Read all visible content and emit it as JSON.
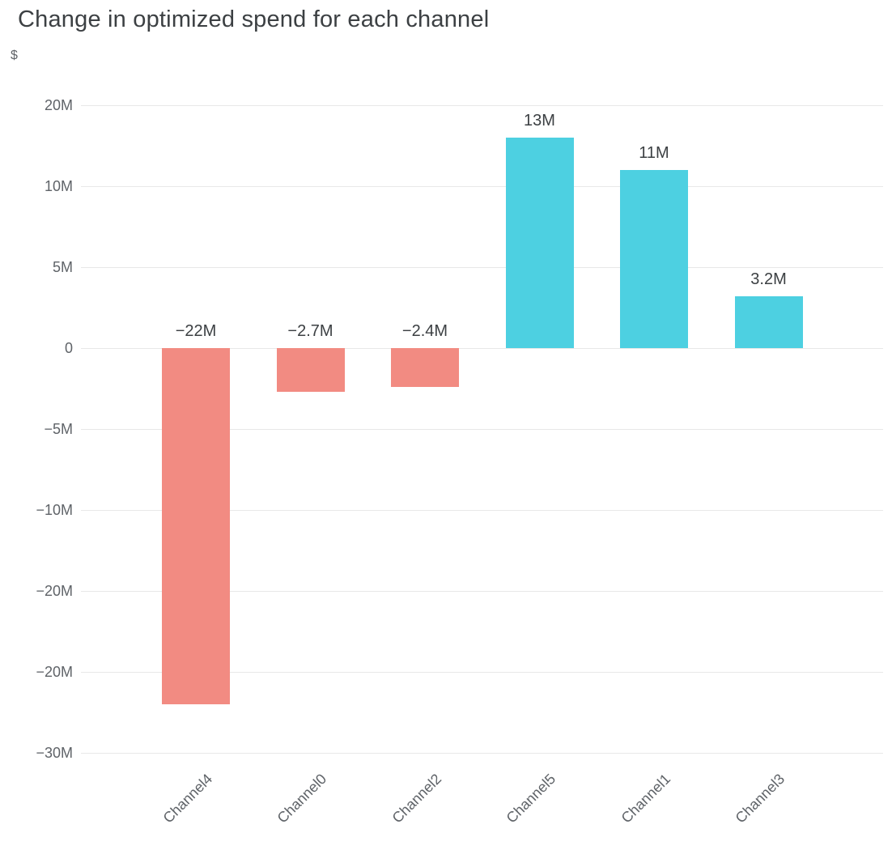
{
  "chart_data": {
    "type": "bar",
    "title": "Change in optimized spend for each channel",
    "ylabel": "$",
    "xlabel": "",
    "categories": [
      "Channel4",
      "Channel0",
      "Channel2",
      "Channel5",
      "Channel1",
      "Channel3"
    ],
    "values": [
      -22000000,
      -2700000,
      -2400000,
      13000000,
      11000000,
      3200000
    ],
    "bar_labels": [
      "−22M",
      "−2.7M",
      "−2.4M",
      "13M",
      "11M",
      "3.2M"
    ],
    "y_tick_values": [
      15000000,
      10000000,
      5000000,
      0,
      -5000000,
      -10000000,
      -15000000,
      -20000000,
      -25000000
    ],
    "y_tick_labels": [
      "20M",
      "10M",
      "5M",
      "0",
      "−5M",
      "−10M",
      "−20M",
      "−20M",
      "−30M"
    ],
    "ylim": [
      -25000000,
      15000000
    ],
    "grid": true,
    "legend": "none",
    "colors": {
      "positive": "#4DD0E1",
      "negative": "#F28B82",
      "title": "#3C4043",
      "axis_text": "#5F6368",
      "value_text": "#3C4043",
      "grid": "#E8E8E8",
      "background": "#FFFFFF"
    }
  }
}
